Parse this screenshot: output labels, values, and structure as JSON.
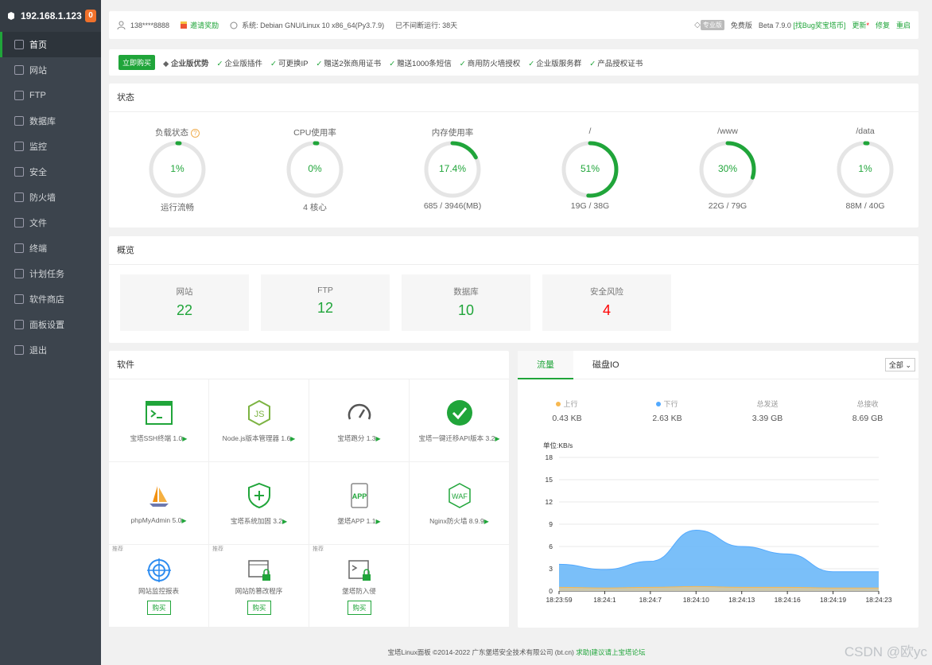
{
  "sidebar": {
    "ip": "192.168.1.123",
    "badge": "0",
    "items": [
      {
        "label": "首页",
        "icon": "home-icon"
      },
      {
        "label": "网站",
        "icon": "globe-icon"
      },
      {
        "label": "FTP",
        "icon": "ftp-icon"
      },
      {
        "label": "数据库",
        "icon": "database-icon"
      },
      {
        "label": "监控",
        "icon": "monitor-icon"
      },
      {
        "label": "安全",
        "icon": "shield-icon"
      },
      {
        "label": "防火墙",
        "icon": "firewall-icon"
      },
      {
        "label": "文件",
        "icon": "folder-icon"
      },
      {
        "label": "终端",
        "icon": "terminal-icon"
      },
      {
        "label": "计划任务",
        "icon": "calendar-icon"
      },
      {
        "label": "软件商店",
        "icon": "apps-icon"
      },
      {
        "label": "面板设置",
        "icon": "gear-icon"
      },
      {
        "label": "退出",
        "icon": "logout-icon"
      }
    ]
  },
  "topbar": {
    "user": "138****8888",
    "invite": "邀请奖励",
    "system": "系统:   Debian GNU/Linux 10 x86_64(Py3.7.9)",
    "uptime": "已不间断运行: 38天",
    "vip": "专业版",
    "edition": "免费版",
    "version": "Beta  7.9.0",
    "bug": "[找Bug奖宝塔币]",
    "update": "更新",
    "repair": "修复",
    "restart": "重启"
  },
  "promo": {
    "buy": "立即购买",
    "enterprise": "企业版优势",
    "features": [
      "企业版插件",
      "可更换IP",
      "赠送2张商用证书",
      "赠送1000条短信",
      "商用防火墙授权",
      "企业版服务群",
      "产品授权证书"
    ]
  },
  "status": {
    "title": "状态",
    "gauges": [
      {
        "title": "负载状态",
        "value": "1%",
        "foot": "运行流畅",
        "pct": 1
      },
      {
        "title": "CPU使用率",
        "value": "0%",
        "foot": "4 核心",
        "pct": 0
      },
      {
        "title": "内存使用率",
        "value": "17.4%",
        "foot": "685 / 3946(MB)",
        "pct": 17.4
      },
      {
        "title": "/",
        "value": "51%",
        "foot": "19G / 38G",
        "pct": 51
      },
      {
        "title": "/www",
        "value": "30%",
        "foot": "22G / 79G",
        "pct": 30
      },
      {
        "title": "/data",
        "value": "1%",
        "foot": "88M / 40G",
        "pct": 1
      }
    ]
  },
  "overview": {
    "title": "概览",
    "items": [
      {
        "label": "网站",
        "value": "22"
      },
      {
        "label": "FTP",
        "value": "12"
      },
      {
        "label": "数据库",
        "value": "10"
      },
      {
        "label": "安全风险",
        "value": "4"
      }
    ]
  },
  "software": {
    "title": "软件",
    "items": [
      {
        "name": "宝塔SSH终端 1.0",
        "icon": "ssh-terminal-icon"
      },
      {
        "name": "Node.js版本管理器 1.6",
        "icon": "nodejs-icon"
      },
      {
        "name": "宝塔跑分 1.3",
        "icon": "speedometer-icon"
      },
      {
        "name": "宝塔一键迁移API版本 3.2",
        "icon": "check-circle-icon"
      },
      {
        "name": "phpMyAdmin 5.0",
        "icon": "phpmyadmin-icon"
      },
      {
        "name": "宝塔系统加固 3.2",
        "icon": "shield-plus-icon"
      },
      {
        "name": "堡塔APP 1.1",
        "icon": "app-icon"
      },
      {
        "name": "Nginx防火墙 8.9.9",
        "icon": "waf-icon"
      }
    ],
    "recommended": [
      {
        "name": "网站监控报表",
        "icon": "target-icon"
      },
      {
        "name": "网站防篡改程序",
        "icon": "lock-window-icon"
      },
      {
        "name": "堡塔防入侵",
        "icon": "terminal-lock-icon"
      }
    ],
    "rec_tag": "推荐",
    "buy_label": "购买"
  },
  "traffic": {
    "tabs": [
      "流量",
      "磁盘IO"
    ],
    "select": "全部",
    "stats": [
      {
        "label": "上行",
        "value": "0.43 KB",
        "color": "#f7b851"
      },
      {
        "label": "下行",
        "value": "2.63 KB",
        "color": "#52a9ff"
      },
      {
        "label": "总发送",
        "value": "3.39 GB"
      },
      {
        "label": "总接收",
        "value": "8.69 GB"
      }
    ],
    "unit": "单位:KB/s"
  },
  "chart_data": {
    "type": "area",
    "ylabel": "单位:KB/s",
    "ylim": [
      0,
      18
    ],
    "yticks": [
      0,
      3,
      6,
      9,
      12,
      15,
      18
    ],
    "x": [
      "18:23:59",
      "18:24:1",
      "18:24:7",
      "18:24:10",
      "18:24:13",
      "18:24:16",
      "18:24:19",
      "18:24:23"
    ],
    "series": [
      {
        "name": "下行",
        "color": "#52a9ff",
        "values": [
          3.6,
          2.9,
          4.0,
          8.2,
          6.0,
          5.0,
          2.6,
          2.6
        ]
      },
      {
        "name": "上行",
        "color": "#f7b851",
        "values": [
          0.5,
          0.4,
          0.5,
          0.6,
          0.5,
          0.5,
          0.4,
          0.4
        ]
      }
    ]
  },
  "footer": {
    "copyright": "宝塔Linux面板 ©2014-2022 广东堡塔安全技术有限公司 (bt.cn)",
    "help": "求助|建议请上宝塔论坛"
  },
  "watermark": "CSDN @欧yc"
}
